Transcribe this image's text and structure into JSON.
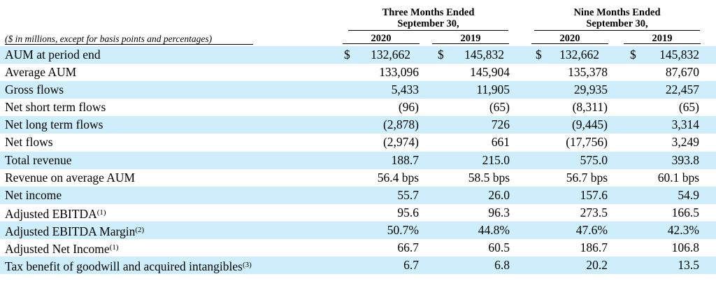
{
  "header": {
    "group1": {
      "line1": "Three Months Ended",
      "line2": "September 30,"
    },
    "group2": {
      "line1": "Nine Months Ended",
      "line2": "September 30,"
    },
    "caption": "($ in millions, except for basis points and percentages)",
    "years": [
      "2020",
      "2019",
      "2020",
      "2019"
    ]
  },
  "currency_symbol": "$",
  "rows": [
    {
      "label": "AUM at period end",
      "values": [
        "132,662",
        "145,832",
        "132,662",
        "145,832"
      ]
    },
    {
      "label": "Average AUM",
      "values": [
        "133,096",
        "145,904",
        "135,378",
        "87,670"
      ]
    },
    {
      "label": "Gross flows",
      "values": [
        "5,433",
        "11,905",
        "29,935",
        "22,457"
      ]
    },
    {
      "label": "Net short term flows",
      "values": [
        "(96)",
        "(65)",
        "(8,311)",
        "(65)"
      ]
    },
    {
      "label": "Net long term flows",
      "values": [
        "(2,878)",
        "726",
        "(9,445)",
        "3,314"
      ]
    },
    {
      "label": "Net flows",
      "values": [
        "(2,974)",
        "661",
        "(17,756)",
        "3,249"
      ]
    },
    {
      "label": "Total revenue",
      "values": [
        "188.7",
        "215.0",
        "575.0",
        "393.8"
      ]
    },
    {
      "label": "Revenue on average AUM",
      "values": [
        "56.4 bps",
        "58.5 bps",
        "56.7 bps",
        "60.1 bps"
      ]
    },
    {
      "label": "Net income",
      "values": [
        "55.7",
        "26.0",
        "157.6",
        "54.9"
      ]
    },
    {
      "label": "Adjusted EBITDA",
      "footnote": "(1)",
      "values": [
        "95.6",
        "96.3",
        "273.5",
        "166.5"
      ]
    },
    {
      "label": "Adjusted EBITDA Margin",
      "footnote": "(2)",
      "values": [
        "50.7%",
        "44.8%",
        "47.6%",
        "42.3%"
      ]
    },
    {
      "label": "Adjusted Net Income",
      "footnote": "(1)",
      "values": [
        "66.7",
        "60.5",
        "186.7",
        "106.8"
      ]
    },
    {
      "label": "Tax benefit of goodwill and acquired intangibles",
      "footnote": "(3)",
      "values": [
        "6.7",
        "6.8",
        "20.2",
        "13.5"
      ]
    }
  ]
}
